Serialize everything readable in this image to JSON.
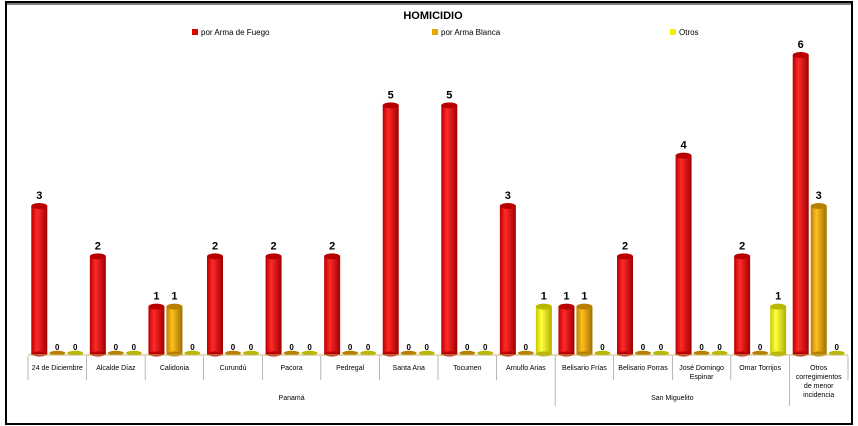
{
  "chart_data": {
    "type": "bar",
    "title": "HOMICIDIO",
    "xlabel": "",
    "ylabel": "",
    "ylim": [
      0,
      6
    ],
    "grid": false,
    "legend_position": "top",
    "categories": [
      "24 de Diciembre",
      "Alcalde Díaz",
      "Calidonia",
      "Curundú",
      "Pacora",
      "Pedregal",
      "Santa Ana",
      "Tocumen",
      "Arnulfo Arias",
      "Belisario Frías",
      "Belisario Porras",
      "José Domingo Espinar",
      "Omar Torrijos",
      "Otros corregimientos de menor incidencia"
    ],
    "category_lines": [
      [
        "24 de Diciembre"
      ],
      [
        "Alcalde Díaz"
      ],
      [
        "Calidonia"
      ],
      [
        "Curundú"
      ],
      [
        "Pacora"
      ],
      [
        "Pedregal"
      ],
      [
        "Santa Ana"
      ],
      [
        "Tocumen"
      ],
      [
        "Arnulfo Arias"
      ],
      [
        "Belisario Frías"
      ],
      [
        "Belisario Porras"
      ],
      [
        "José Domingo",
        "Espinar"
      ],
      [
        "Omar Torrijos"
      ],
      [
        "Otros",
        "corregimientos",
        "de menor",
        "incidencia"
      ]
    ],
    "groups": [
      {
        "label": "Panamá",
        "from": 0,
        "to": 8
      },
      {
        "label": "San Miguelito",
        "from": 9,
        "to": 12
      }
    ],
    "series": [
      {
        "name": "por Arma de Fuego",
        "color": "#e00000",
        "values": [
          3,
          2,
          1,
          2,
          2,
          2,
          5,
          5,
          3,
          1,
          2,
          4,
          2,
          6
        ]
      },
      {
        "name": "por Arma Blanca",
        "color": "#e8a800",
        "values": [
          0,
          0,
          1,
          0,
          0,
          0,
          0,
          0,
          0,
          1,
          0,
          0,
          0,
          3
        ]
      },
      {
        "name": "Otros",
        "color": "#f2f200",
        "values": [
          0,
          0,
          0,
          0,
          0,
          0,
          0,
          0,
          1,
          0,
          0,
          0,
          1,
          0
        ]
      }
    ]
  },
  "colors": {
    "fire_dark": "#b80000",
    "blade_dark": "#b88000",
    "other_dark": "#b8b800",
    "baseline": "#c8b46a",
    "border": "#000000"
  }
}
